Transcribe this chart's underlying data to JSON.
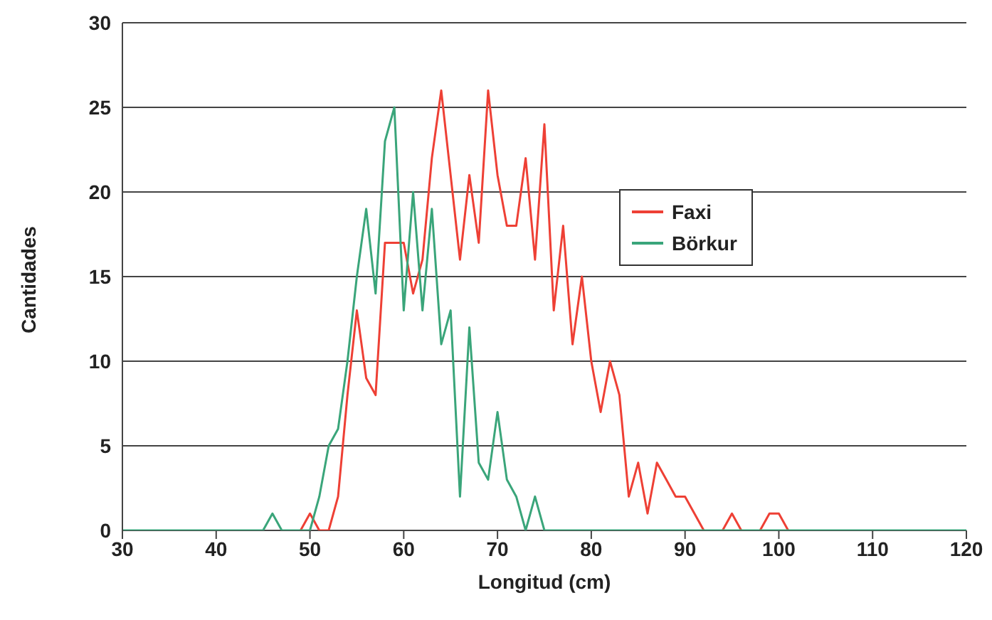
{
  "chart_data": {
    "type": "line",
    "xlabel": "Longitud (cm)",
    "ylabel": "Cantidades",
    "x": [
      30,
      31,
      32,
      33,
      34,
      35,
      36,
      37,
      38,
      39,
      40,
      41,
      42,
      43,
      44,
      45,
      46,
      47,
      48,
      49,
      50,
      51,
      52,
      53,
      54,
      55,
      56,
      57,
      58,
      59,
      60,
      61,
      62,
      63,
      64,
      65,
      66,
      67,
      68,
      69,
      70,
      71,
      72,
      73,
      74,
      75,
      76,
      77,
      78,
      79,
      80,
      81,
      82,
      83,
      84,
      85,
      86,
      87,
      88,
      89,
      90,
      91,
      92,
      93,
      94,
      95,
      96,
      97,
      98,
      99,
      100,
      101,
      102,
      103,
      104,
      105,
      106,
      107,
      108,
      109,
      110,
      111,
      112,
      113,
      114,
      115,
      116,
      117,
      118,
      119,
      120
    ],
    "series": [
      {
        "name": "Faxi",
        "color": "#ee4035",
        "values": [
          null,
          null,
          null,
          null,
          null,
          null,
          null,
          null,
          null,
          null,
          null,
          null,
          null,
          null,
          null,
          null,
          null,
          null,
          null,
          0,
          1,
          0,
          0,
          2,
          8,
          13,
          9,
          8,
          17,
          17,
          17,
          14,
          16,
          22,
          26,
          21,
          16,
          21,
          17,
          26,
          21,
          18,
          18,
          22,
          16,
          24,
          13,
          18,
          11,
          15,
          10,
          7,
          10,
          8,
          2,
          4,
          1,
          4,
          3,
          2,
          2,
          1,
          0,
          null,
          0,
          1,
          0,
          null,
          0,
          1,
          1,
          0,
          null,
          null,
          null,
          null,
          null,
          null,
          null,
          null,
          null,
          null,
          null,
          null,
          null,
          null,
          null,
          null,
          null,
          null,
          null
        ]
      },
      {
        "name": "Börkur",
        "color": "#3aa57a",
        "values": [
          0,
          0,
          0,
          0,
          0,
          0,
          0,
          0,
          0,
          0,
          0,
          0,
          0,
          0,
          0,
          0,
          1,
          0,
          0,
          0,
          0,
          2,
          5,
          6,
          10,
          15,
          19,
          14,
          23,
          25,
          13,
          20,
          13,
          19,
          11,
          13,
          2,
          12,
          4,
          3,
          7,
          3,
          2,
          0,
          2,
          0,
          0,
          0,
          0,
          0,
          0,
          0,
          0,
          0,
          0,
          0,
          0,
          0,
          0,
          0,
          0,
          0,
          0,
          0,
          0,
          0,
          0,
          0,
          0,
          0,
          0,
          0,
          0,
          0,
          0,
          0,
          0,
          0,
          0,
          0,
          0,
          0,
          0,
          0,
          0,
          0,
          0,
          0,
          0,
          0,
          0
        ]
      }
    ],
    "xlim": [
      30,
      120
    ],
    "xticks": [
      30,
      40,
      50,
      60,
      70,
      80,
      90,
      100,
      110,
      120
    ],
    "ylim": [
      0,
      30
    ],
    "yticks": [
      0,
      5,
      10,
      15,
      20,
      25,
      30
    ],
    "grid": "y",
    "legend": "right",
    "marker": "none",
    "line_style": "solid"
  }
}
